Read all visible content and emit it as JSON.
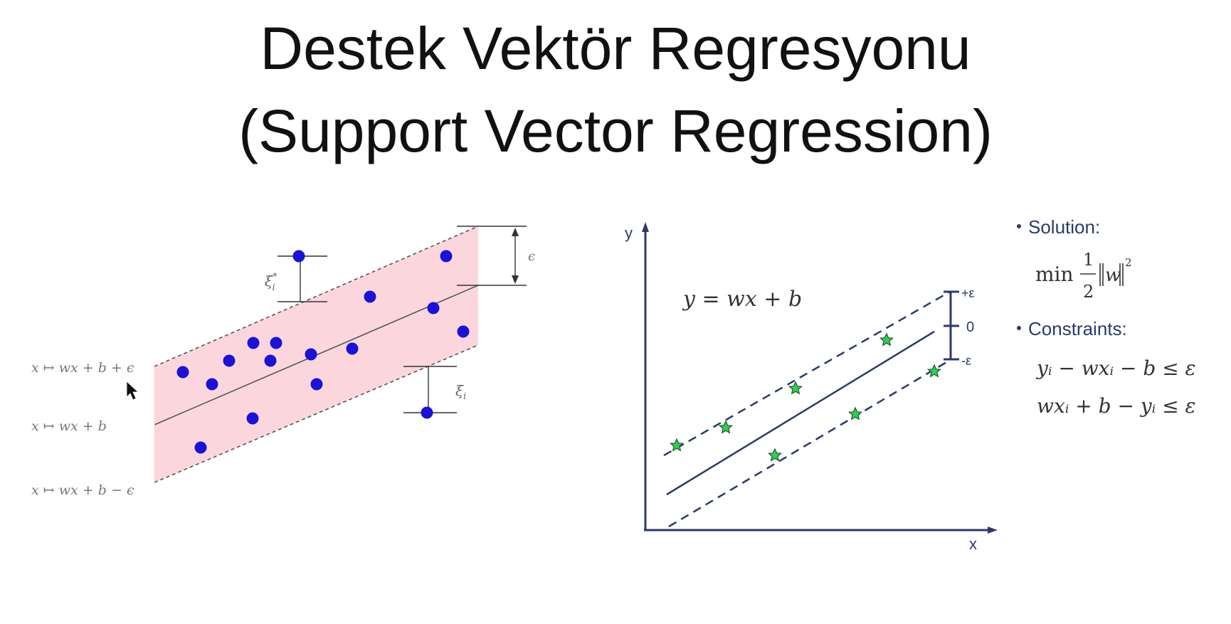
{
  "title": {
    "line1": "Destek Vektör Regresyonu",
    "line2": "(Support Vector Regression)"
  },
  "left_diagram": {
    "band_color": "#fbd7dd",
    "point_color": "#1a12d6",
    "labels": {
      "upper": "x ↦ wx + b + ϵ",
      "middle": "x ↦ wx + b",
      "lower": "x ↦ wx + b − ϵ",
      "xi_star": "ξ",
      "xi_star_sup": "*",
      "xi_star_sub": "i",
      "xi": "ξ",
      "xi_sub": "i",
      "epsilon": "ϵ"
    }
  },
  "right_diagram": {
    "line_color": "#2b3a6b",
    "star_color": "#33cc55",
    "axis_y": "y",
    "axis_x": "x",
    "equation": "y = wx + b",
    "ticks": {
      "plus_eps": "+ε",
      "zero": "0",
      "minus_eps": "-ε"
    }
  },
  "solution_panel": {
    "text_color": "#2b3a6b",
    "solution_label": "Solution:",
    "min_text": "min",
    "frac_num": "1",
    "frac_den": "2",
    "norm_w": "w",
    "norm_exp": "2",
    "constraints_label": "Constraints:",
    "constraint1": "yᵢ − wxᵢ − b ≤ ε",
    "constraint2": "wxᵢ + b − yᵢ ≤ ε"
  }
}
